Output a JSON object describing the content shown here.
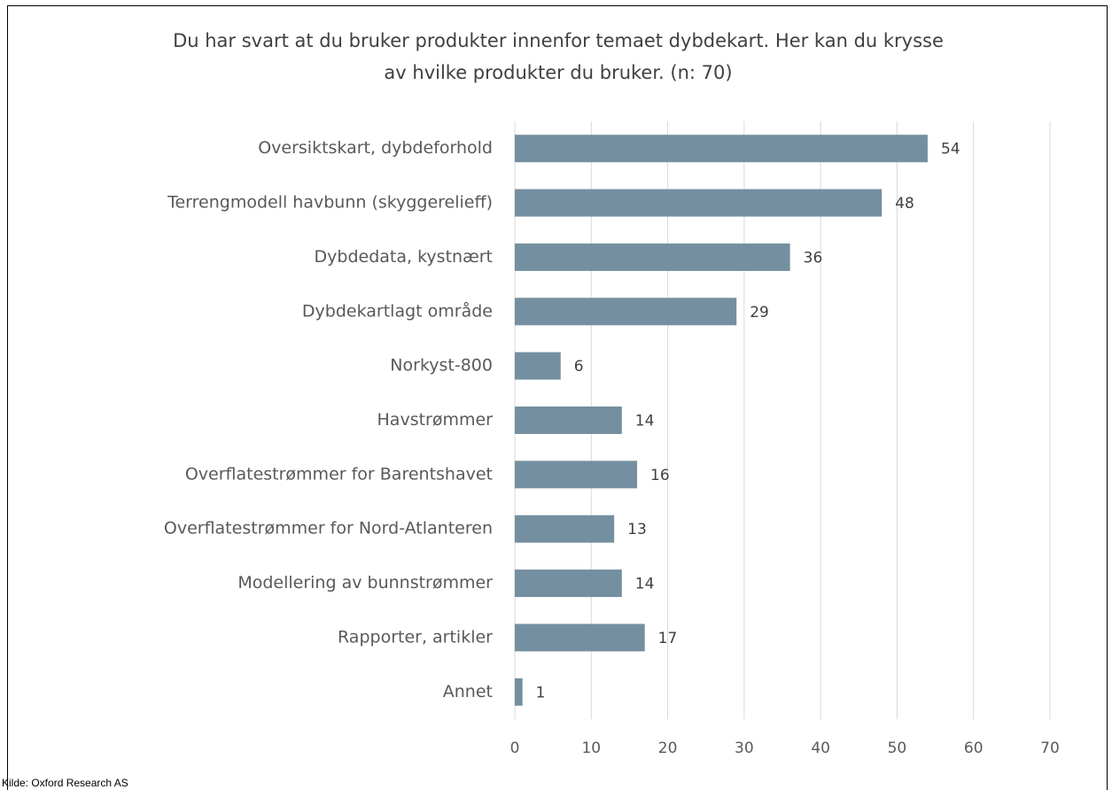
{
  "chart_data": {
    "type": "bar",
    "orientation": "horizontal",
    "title": [
      "Du har svart at du bruker produkter innenfor temaet dybdekart. Her kan du krysse",
      "av hvilke produkter du bruker. (n: 70)"
    ],
    "categories": [
      "Oversiktskart, dybdeforhold",
      "Terrengmodell havbunn (skyggerelieff)",
      "Dybdedata, kystnært",
      "Dybdekartlagt område",
      "Norkyst-800",
      "Havstrømmer",
      "Overflatestrømmer for Barentshavet",
      "Overflatestrømmer for Nord-Atlanteren",
      "Modellering av bunnstrømmer",
      "Rapporter, artikler",
      "Annet"
    ],
    "values": [
      54,
      48,
      36,
      29,
      6,
      14,
      16,
      13,
      14,
      17,
      1
    ],
    "color": "#748fa0",
    "xlim": [
      0,
      70
    ],
    "xticks": [
      0,
      10,
      20,
      30,
      40,
      50,
      60,
      70
    ],
    "grid": true,
    "source": "Kilde: Oxford Research AS"
  }
}
